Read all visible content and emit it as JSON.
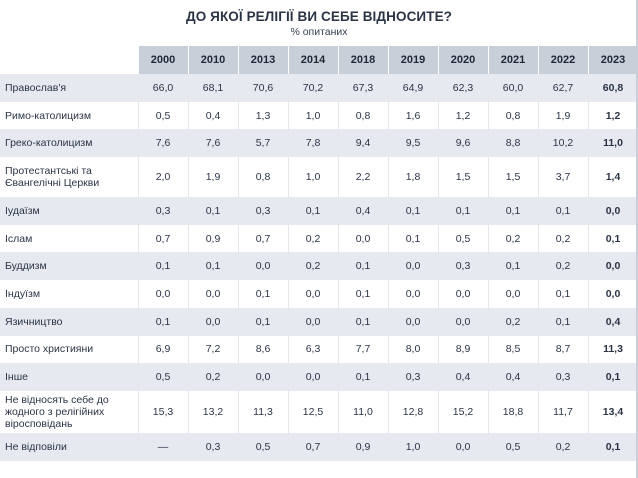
{
  "title": "ДО ЯКОЇ РЕЛІГІЇ ВИ СЕБЕ ВІДНОСИТЕ?",
  "subtitle": "% опитаних",
  "years": [
    "2000",
    "2010",
    "2013",
    "2014",
    "2018",
    "2019",
    "2020",
    "2021",
    "2022",
    "2023"
  ],
  "rows": [
    {
      "label": "Православ'я",
      "values": [
        "66,0",
        "68,1",
        "70,6",
        "70,2",
        "67,3",
        "64,9",
        "62,3",
        "60,0",
        "62,7",
        "60,8"
      ]
    },
    {
      "label": "Римо-католицизм",
      "values": [
        "0,5",
        "0,4",
        "1,3",
        "1,0",
        "0,8",
        "1,6",
        "1,2",
        "0,8",
        "1,9",
        "1,2"
      ]
    },
    {
      "label": "Греко-католицизм",
      "values": [
        "7,6",
        "7,6",
        "5,7",
        "7,8",
        "9,4",
        "9,5",
        "9,6",
        "8,8",
        "10,2",
        "11,0"
      ]
    },
    {
      "label": "Протестантські та Євангелічні Церкви",
      "values": [
        "2,0",
        "1,9",
        "0,8",
        "1,0",
        "2,2",
        "1,8",
        "1,5",
        "1,5",
        "3,7",
        "1,4"
      ]
    },
    {
      "label": "Іудаїзм",
      "values": [
        "0,3",
        "0,1",
        "0,3",
        "0,1",
        "0,4",
        "0,1",
        "0,1",
        "0,1",
        "0,1",
        "0,0"
      ]
    },
    {
      "label": "Іслам",
      "values": [
        "0,7",
        "0,9",
        "0,7",
        "0,2",
        "0,0",
        "0,1",
        "0,5",
        "0,2",
        "0,2",
        "0,1"
      ]
    },
    {
      "label": "Буддизм",
      "values": [
        "0,1",
        "0,1",
        "0,0",
        "0,2",
        "0,1",
        "0,0",
        "0,3",
        "0,1",
        "0,2",
        "0,0"
      ]
    },
    {
      "label": "Індуїзм",
      "values": [
        "0,0",
        "0,0",
        "0,1",
        "0,0",
        "0,1",
        "0,0",
        "0,0",
        "0,0",
        "0,1",
        "0,0"
      ]
    },
    {
      "label": "Язичництво",
      "values": [
        "0,1",
        "0,0",
        "0,1",
        "0,0",
        "0,1",
        "0,0",
        "0,0",
        "0,2",
        "0,1",
        "0,4"
      ]
    },
    {
      "label": "Просто християни",
      "values": [
        "6,9",
        "7,2",
        "8,6",
        "6,3",
        "7,7",
        "8,0",
        "8,9",
        "8,5",
        "8,7",
        "11,3"
      ]
    },
    {
      "label": "Інше",
      "values": [
        "0,5",
        "0,2",
        "0,0",
        "0,0",
        "0,1",
        "0,3",
        "0,4",
        "0,4",
        "0,3",
        "0,1"
      ]
    },
    {
      "label": "Не відносять себе до жодного з релігійних віросповідань",
      "values": [
        "15,3",
        "13,2",
        "11,3",
        "12,5",
        "11,0",
        "12,8",
        "15,2",
        "18,8",
        "11,7",
        "13,4"
      ]
    },
    {
      "label": "Не відповіли",
      "values": [
        "—",
        "0,3",
        "0,5",
        "0,7",
        "0,9",
        "1,0",
        "0,0",
        "0,5",
        "0,2",
        "0,1"
      ]
    }
  ]
}
